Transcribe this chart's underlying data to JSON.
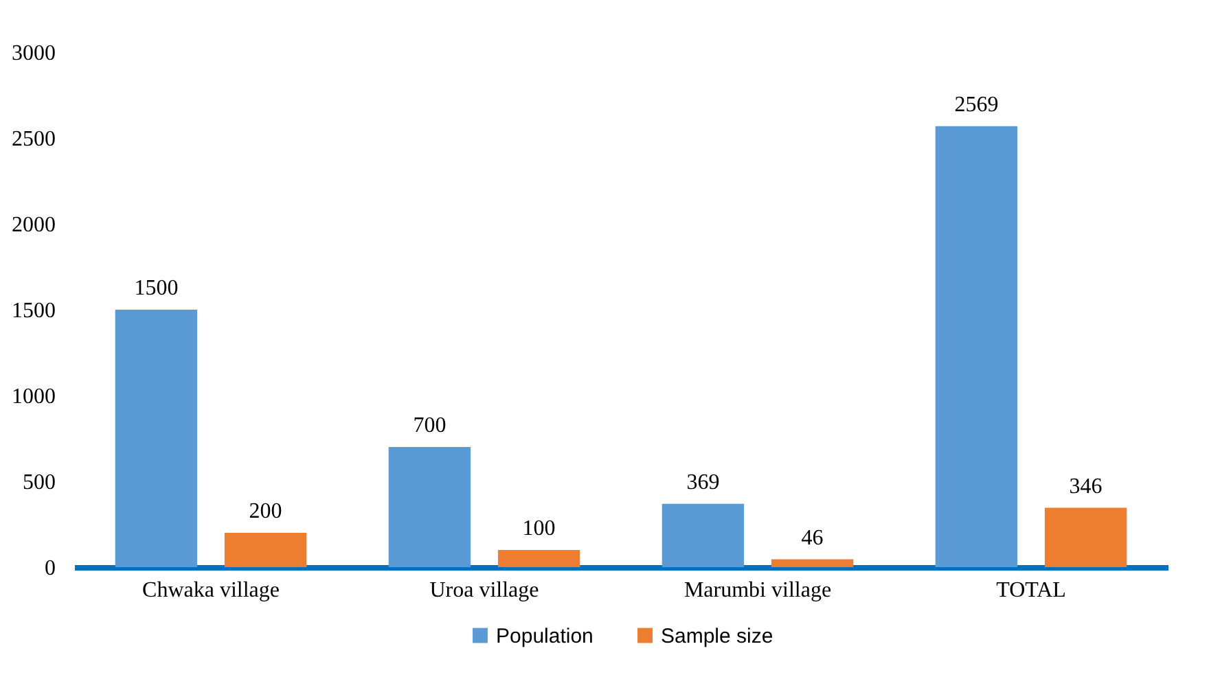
{
  "chart_data": {
    "type": "bar",
    "categories": [
      "Chwaka village",
      "Uroa village",
      "Marumbi village",
      "TOTAL"
    ],
    "series": [
      {
        "name": "Population",
        "color": "#5b9bd5",
        "values": [
          1500,
          700,
          369,
          2569
        ]
      },
      {
        "name": "Sample size",
        "color": "#ed7d31",
        "values": [
          200,
          100,
          46,
          346
        ]
      }
    ],
    "ylim": [
      0,
      3000
    ],
    "yticks": [
      0,
      500,
      1000,
      1500,
      2000,
      2500,
      3000
    ],
    "data_labels": true,
    "legend": "bottom"
  }
}
